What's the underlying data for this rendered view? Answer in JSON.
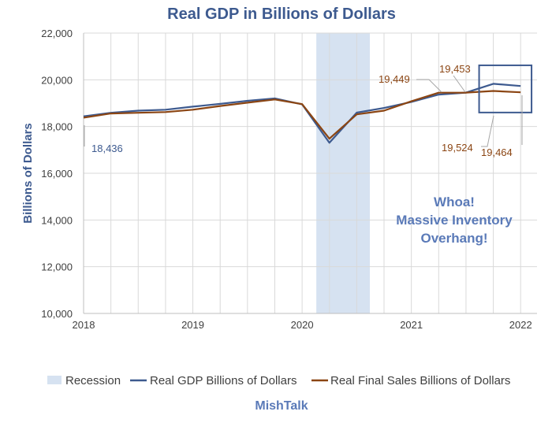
{
  "chart_data": {
    "type": "line",
    "title": "Real GDP in Billions of Dollars",
    "ylabel": "Billions of Dollars",
    "xlabel": "",
    "ylim": [
      10000,
      22000
    ],
    "xlim": [
      2018,
      2022.15
    ],
    "yticks": [
      10000,
      12000,
      14000,
      16000,
      18000,
      20000,
      22000
    ],
    "ytick_labels": [
      "10,000",
      "12,000",
      "14,000",
      "16,000",
      "18,000",
      "20,000",
      "22,000"
    ],
    "xticks": [
      2018,
      2019,
      2020,
      2021,
      2022
    ],
    "xtick_labels": [
      "2018",
      "2019",
      "2020",
      "2021",
      "2022"
    ],
    "grid": true,
    "recession": {
      "name": "Recession",
      "start": 2020.13,
      "end": 2020.62,
      "color": "#d6e2f1"
    },
    "series": [
      {
        "name": "Real GDP Billions of Dollars",
        "color": "#3d5a8f",
        "x": [
          2018,
          2018.25,
          2018.5,
          2018.75,
          2019,
          2019.25,
          2019.5,
          2019.75,
          2020,
          2020.25,
          2020.5,
          2020.75,
          2021,
          2021.25,
          2021.5,
          2021.75,
          2022
        ],
        "values": [
          18436,
          18590,
          18680,
          18720,
          18850,
          18970,
          19100,
          19202,
          18951,
          17303,
          18596,
          18795,
          19055,
          19368,
          19453,
          19830,
          19735
        ]
      },
      {
        "name": "Real Final Sales Billions of Dollars",
        "color": "#8b4513",
        "x": [
          2018,
          2018.25,
          2018.5,
          2018.75,
          2019,
          2019.25,
          2019.5,
          2019.75,
          2020,
          2020.25,
          2020.5,
          2020.75,
          2021,
          2021.25,
          2021.5,
          2021.75,
          2022
        ],
        "values": [
          18380,
          18560,
          18590,
          18620,
          18720,
          18880,
          19020,
          19160,
          18960,
          17480,
          18520,
          18680,
          19080,
          19449,
          19453,
          19524,
          19464
        ]
      }
    ],
    "data_labels": [
      {
        "text": "18,436",
        "series": 0,
        "color": "#3d5a8f"
      },
      {
        "text": "19,449",
        "series": 1,
        "color": "#8b4513"
      },
      {
        "text": "19,453",
        "series": 0,
        "color": "#8b4513"
      },
      {
        "text": "19,524",
        "series": 1,
        "color": "#8b4513"
      },
      {
        "text": "19,464",
        "series": 1,
        "color": "#8b4513"
      }
    ],
    "annotation": {
      "lines": [
        "Whoa!",
        "Massive Inventory",
        "Overhang!"
      ],
      "color": "#5a7ab8"
    },
    "highlight_box": {
      "x0": 2021.62,
      "x1": 2022.1,
      "y0": 18600,
      "y1": 20620,
      "color": "#3d5a8f"
    },
    "legend_position": "bottom",
    "source": "MishTalk"
  },
  "colors": {
    "title": "#3d5a8f",
    "axis_title": "#3d5a8f",
    "source": "#5a7ab8",
    "grid": "#d9d9d9"
  }
}
